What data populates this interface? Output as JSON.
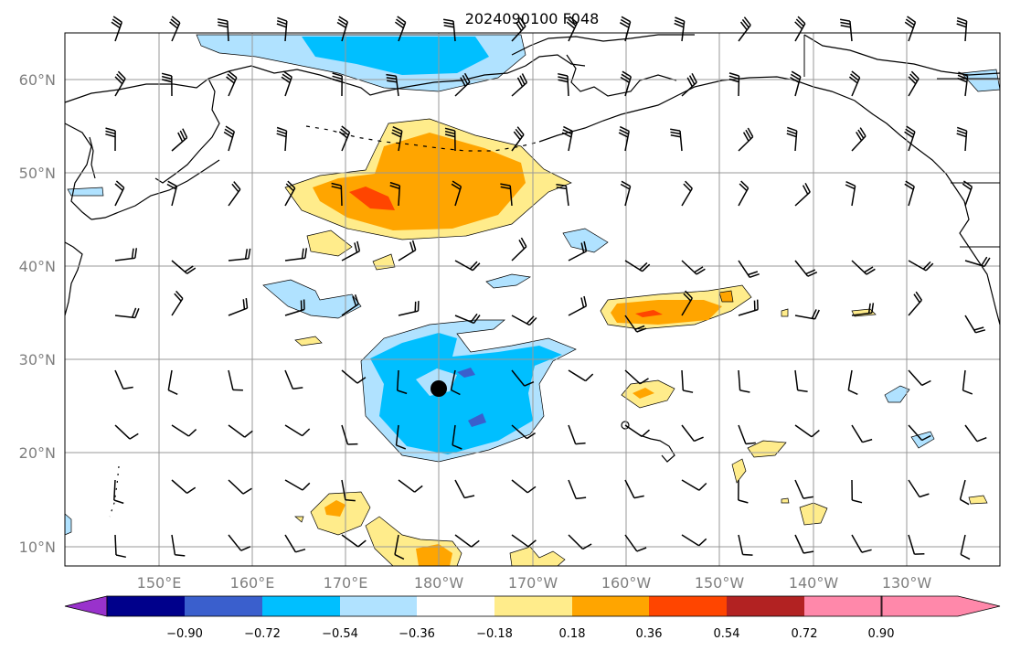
{
  "title": "2024090100 F048",
  "map": {
    "lat_labels": [
      "60°N",
      "50°N",
      "40°N",
      "30°N",
      "20°N",
      "10°N"
    ],
    "lon_labels": [
      "150°E",
      "160°E",
      "170°E",
      "180°W",
      "170°W",
      "160°W",
      "150°W",
      "140°W",
      "130°W"
    ],
    "marker": "storm-center-dot"
  },
  "colorbar": {
    "tick_labels": [
      "−0.90",
      "−0.72",
      "−0.54",
      "−0.36",
      "−0.18",
      "0.18",
      "0.36",
      "0.54",
      "0.72",
      "0.90"
    ],
    "colors": [
      "#9932cc",
      "#00008b",
      "#3a5fcd",
      "#00bfff",
      "#b0e2ff",
      "#ffffff",
      "#ffec8b",
      "#ffa500",
      "#ff4500",
      "#b22222",
      "#ff88aa"
    ]
  }
}
